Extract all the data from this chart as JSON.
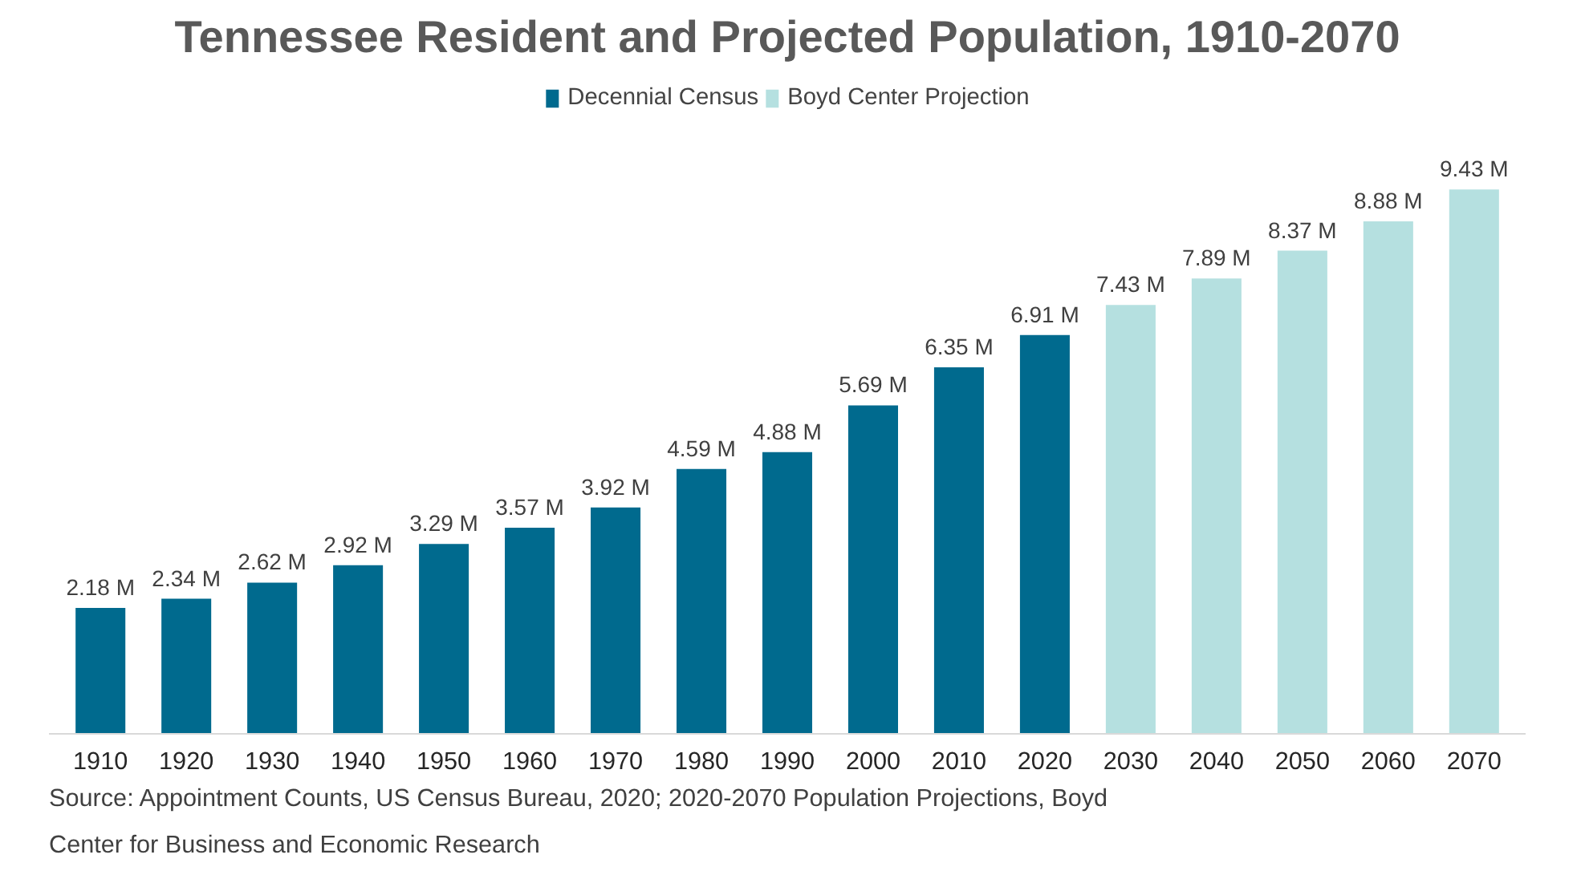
{
  "chart_data": {
    "type": "bar",
    "title": "Tennessee Resident and Projected Population, 1910-2070",
    "categories": [
      "1910",
      "1920",
      "1930",
      "1940",
      "1950",
      "1960",
      "1970",
      "1980",
      "1990",
      "2000",
      "2010",
      "2020",
      "2030",
      "2040",
      "2050",
      "2060",
      "2070"
    ],
    "series": [
      {
        "name": "Decennial Census",
        "color": "#006a8e",
        "values": [
          2.18,
          2.34,
          2.62,
          2.92,
          3.29,
          3.57,
          3.92,
          4.59,
          4.88,
          5.69,
          6.35,
          6.91,
          null,
          null,
          null,
          null,
          null
        ],
        "value_labels": [
          "2.18 M",
          "2.34 M",
          "2.62 M",
          "2.92 M",
          "3.29 M",
          "3.57 M",
          "3.92 M",
          "4.59 M",
          "4.88 M",
          "5.69 M",
          "6.35 M",
          "6.91 M",
          null,
          null,
          null,
          null,
          null
        ]
      },
      {
        "name": "Boyd Center Projection",
        "color": "#b5e0e0",
        "values": [
          null,
          null,
          null,
          null,
          null,
          null,
          null,
          null,
          null,
          null,
          null,
          null,
          7.43,
          7.89,
          8.37,
          8.88,
          9.43
        ],
        "value_labels": [
          null,
          null,
          null,
          null,
          null,
          null,
          null,
          null,
          null,
          null,
          null,
          null,
          "7.43 M",
          "7.89 M",
          "8.37 M",
          "8.88 M",
          "9.43 M"
        ]
      }
    ],
    "legend": "top",
    "grid": false,
    "tick_labels": "x",
    "annotations": [
      "Source: Appointment Counts, US Census Bureau, 2020; 2020-2070 Population Projections, Boyd Center for Business and Economic Research"
    ]
  }
}
